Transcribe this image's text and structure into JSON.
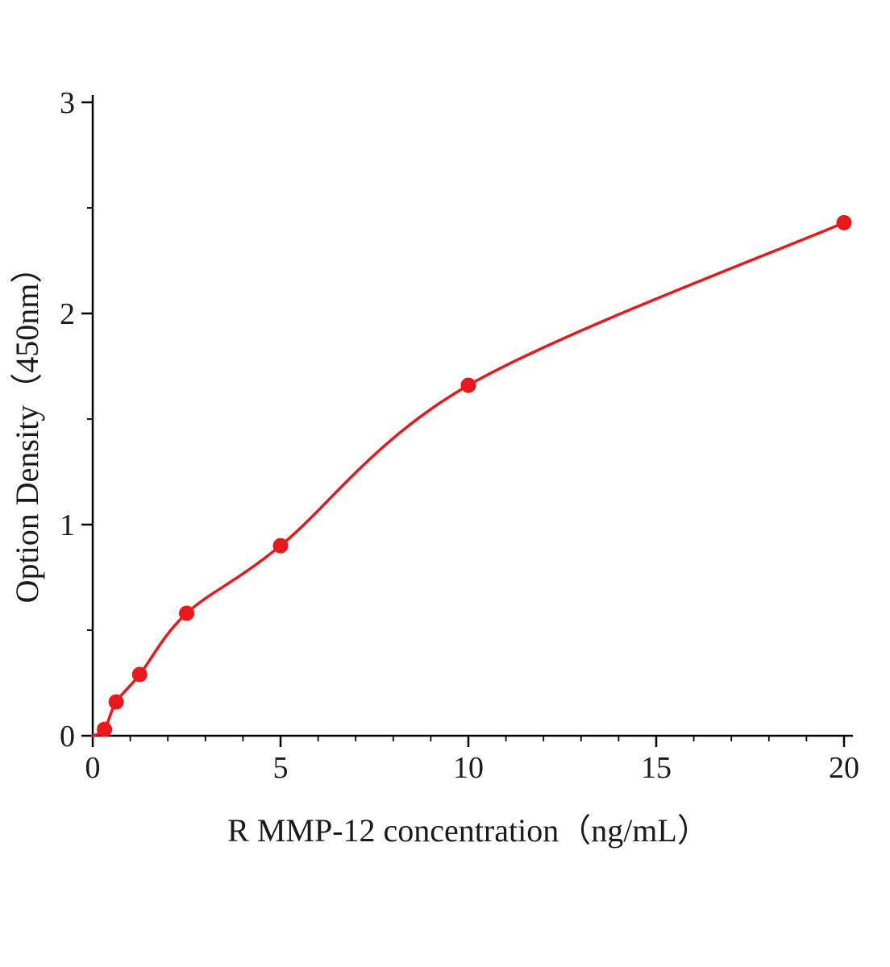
{
  "page": {
    "background_color": "#ffffff",
    "text_color": "#1a1a1a"
  },
  "chart_data": {
    "type": "scatter",
    "title": "",
    "xlabel": "R MMP-12  concentration（ng/mL）",
    "ylabel": "Option Density（450nm）",
    "x": [
      0.313,
      0.625,
      1.25,
      2.5,
      5,
      10,
      20
    ],
    "y": [
      0.03,
      0.16,
      0.29,
      0.58,
      0.9,
      1.66,
      2.43
    ],
    "curve_start": {
      "x": 0,
      "y": 0
    },
    "xlim": [
      0,
      20
    ],
    "ylim": [
      0,
      3
    ],
    "x_ticks": [
      0,
      5,
      10,
      15,
      20
    ],
    "y_ticks": [
      0,
      1,
      2,
      3
    ],
    "x_minor_step": 1,
    "y_minor_step": 0.5,
    "grid": false,
    "legend": false,
    "marker": {
      "shape": "circle",
      "radius": 9.5,
      "color": "#e8191c"
    },
    "line": {
      "color": "#e8191c",
      "width": 3.5
    },
    "axis_color": "#000000",
    "tick_label_font_size": 38
  }
}
